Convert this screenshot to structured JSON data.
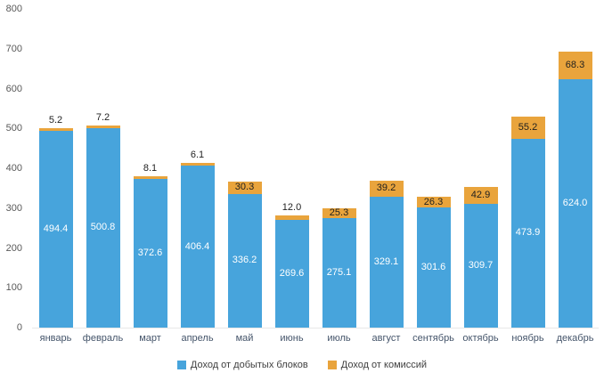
{
  "chart_data": {
    "type": "bar",
    "stacked": true,
    "title": "",
    "xlabel": "",
    "ylabel": "",
    "categories": [
      "январь",
      "февраль",
      "март",
      "апрель",
      "май",
      "июнь",
      "июль",
      "август",
      "сентябрь",
      "октябрь",
      "ноябрь",
      "декабрь"
    ],
    "series": [
      {
        "name": "Доход от добытых блоков",
        "color": "#47a4dc",
        "values": [
          494.4,
          500.8,
          372.6,
          406.4,
          336.2,
          269.6,
          275.1,
          329.1,
          301.6,
          309.7,
          473.9,
          624.0
        ]
      },
      {
        "name": "Доход от комиссий",
        "color": "#e9a43c",
        "values": [
          5.2,
          7.2,
          8.1,
          6.1,
          30.3,
          12.0,
          25.3,
          39.2,
          26.3,
          42.9,
          55.2,
          68.3
        ]
      }
    ],
    "ylim": [
      0,
      800
    ],
    "ytick_step": 100,
    "grid": false,
    "legend_position": "bottom",
    "value_label_decimals": 1
  }
}
